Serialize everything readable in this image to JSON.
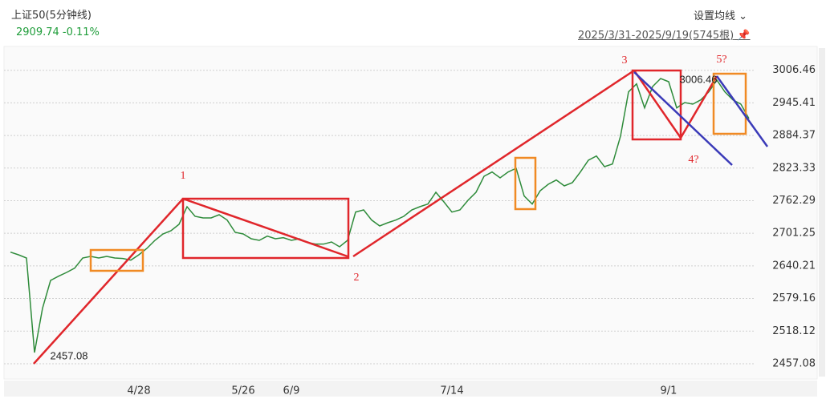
{
  "header": {
    "title": "上证50(5分钟线)",
    "quote": "2909.74 -0.11%",
    "ma_button": "设置均线",
    "range": "2025/3/31-2025/9/19(5745根)"
  },
  "chart_data": {
    "type": "line",
    "categories": [
      null,
      null,
      null,
      null,
      null,
      null,
      null,
      null,
      null,
      null,
      null,
      null,
      null,
      null,
      null,
      null,
      "4/28",
      null,
      null,
      null,
      null,
      null,
      null,
      null,
      null,
      null,
      null,
      null,
      null,
      "5/26",
      null,
      null,
      null,
      null,
      null,
      "6/9",
      null,
      null,
      null,
      null,
      null,
      null,
      null,
      null,
      null,
      null,
      null,
      null,
      null,
      null,
      null,
      null,
      null,
      null,
      null,
      "7/14",
      null,
      null,
      null,
      null,
      null,
      null,
      null,
      null,
      null,
      null,
      null,
      null,
      null,
      null,
      null,
      null,
      null,
      null,
      null,
      null,
      null,
      null,
      null,
      null,
      null,
      null,
      "9/1",
      null,
      null,
      null,
      null,
      null,
      null,
      null,
      null,
      null,
      null
    ],
    "series": [
      {
        "name": "上证50",
        "color": "#2e8b3a",
        "values": [
          2666,
          2661,
          2655,
          2478,
          2561,
          2613,
          2621,
          2628,
          2636,
          2655,
          2658,
          2655,
          2658,
          2655,
          2654,
          2651,
          2661,
          2673,
          2688,
          2700,
          2706,
          2718,
          2751,
          2733,
          2730,
          2730,
          2736,
          2726,
          2703,
          2700,
          2691,
          2688,
          2696,
          2691,
          2693,
          2688,
          2691,
          2684,
          2681,
          2681,
          2685,
          2676,
          2688,
          2741,
          2745,
          2726,
          2715,
          2721,
          2726,
          2733,
          2745,
          2751,
          2756,
          2778,
          2760,
          2741,
          2745,
          2763,
          2778,
          2808,
          2816,
          2805,
          2816,
          2823,
          2771,
          2756,
          2781,
          2793,
          2801,
          2790,
          2796,
          2816,
          2838,
          2846,
          2826,
          2831,
          2883,
          2966,
          2981,
          2936,
          2976,
          2991,
          2985,
          2936,
          2946,
          2943,
          2951,
          2966,
          2988,
          2966,
          2951,
          2943,
          2916
        ]
      }
    ],
    "ylim": [
      2433,
      3033
    ],
    "yticks": [
      3006.46,
      2945.41,
      2884.37,
      2823.33,
      2762.29,
      2701.25,
      2640.21,
      2579.16,
      2518.12,
      2457.08
    ],
    "grid": true,
    "annotations": [
      "1",
      "2",
      "3",
      "4?",
      "5?",
      "2457.08",
      "3006.46"
    ]
  }
}
